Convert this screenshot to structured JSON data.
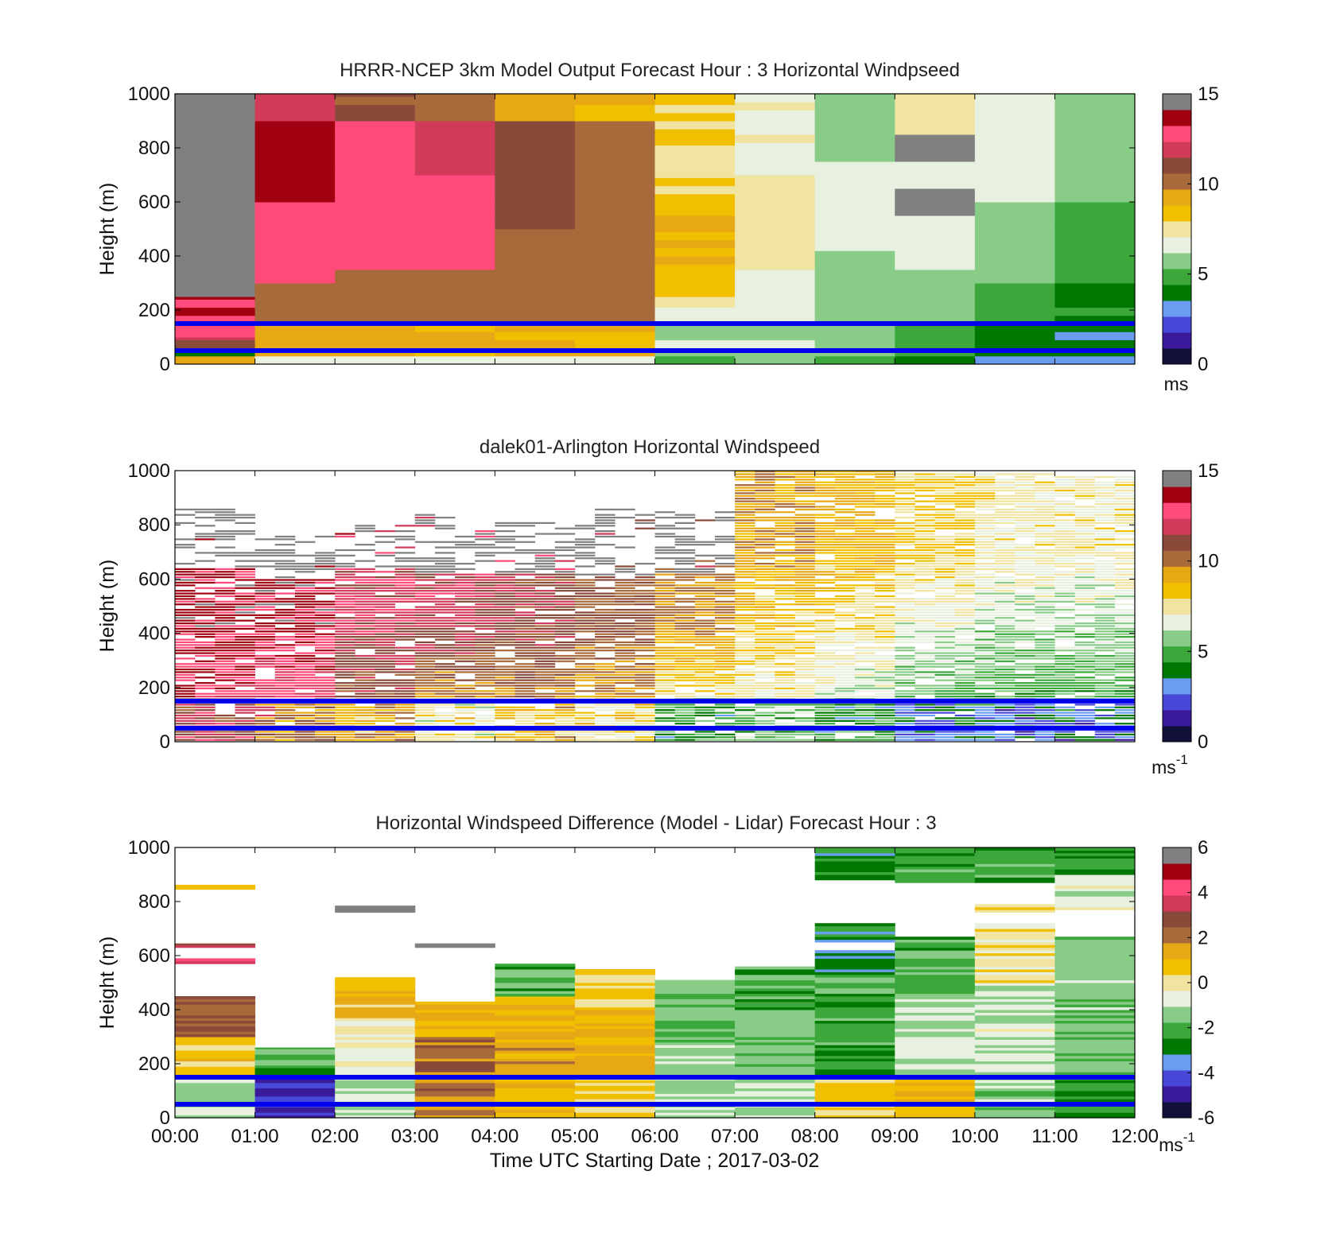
{
  "colors": {
    "windspeed_colormap": [
      "#101038",
      "#3a1a9a",
      "#4848d8",
      "#6a9cf0",
      "#007800",
      "#3ca83c",
      "#88cc88",
      "#e8f0e0",
      "#f0e4a0",
      "#f0c000",
      "#e6a814",
      "#a86a3a",
      "#8a4a3a",
      "#d23a5a",
      "#ff4a7a",
      "#a00010",
      "#808080"
    ],
    "difference_colormap": [
      "#101038",
      "#3a1a9a",
      "#4848d8",
      "#6a9cf0",
      "#007800",
      "#3ca83c",
      "#88cc88",
      "#e8f0e0",
      "#f0e4a0",
      "#f0c000",
      "#e6a814",
      "#a86a3a",
      "#8a4a3a",
      "#d23a5a",
      "#ff4a7a",
      "#a00010",
      "#808080"
    ],
    "overlay_line": "#0000ee",
    "missing": "#808080"
  },
  "chart_data": [
    {
      "type": "heatmap",
      "title": "HRRR-NCEP 3km Model Output   Forecast Hour : 3 Horizontal Windpseed",
      "xlabel": "",
      "ylabel": "Height (m)",
      "ylim": [
        0,
        1000
      ],
      "yticks": [
        0,
        200,
        400,
        600,
        800,
        1000
      ],
      "x_tick_labels": [
        "",
        "",
        "",
        "",
        "",
        "",
        "",
        "",
        "",
        "",
        "",
        "",
        ""
      ],
      "colorbar": {
        "min": 0,
        "max": 15,
        "ticks": [
          0,
          5,
          10,
          15
        ],
        "unit": "ms"
      },
      "overlay_heights": [
        150,
        50
      ],
      "columns": [
        {
          "x": "00:00-01:00",
          "profile": [
            [
              0,
              30,
              9.5
            ],
            [
              30,
              60,
              4
            ],
            [
              60,
              100,
              12
            ],
            [
              100,
              150,
              13.5
            ],
            [
              150,
              250,
              14
            ],
            [
              250,
              1000,
              15.5
            ]
          ]
        },
        {
          "x": "01:00-02:00",
          "profile": [
            [
              0,
              30,
              7.2
            ],
            [
              30,
              150,
              9.8
            ],
            [
              150,
              300,
              11
            ],
            [
              300,
              600,
              13.5
            ],
            [
              600,
              900,
              14.8
            ],
            [
              900,
              1000,
              13
            ]
          ]
        },
        {
          "x": "02:00-03:00",
          "profile": [
            [
              0,
              30,
              7.2
            ],
            [
              30,
              150,
              9.5
            ],
            [
              150,
              350,
              11
            ],
            [
              350,
              900,
              13.5
            ],
            [
              900,
              1000,
              11.5
            ]
          ]
        },
        {
          "x": "03:00-04:00",
          "profile": [
            [
              0,
              30,
              7.2
            ],
            [
              30,
              150,
              9.5
            ],
            [
              150,
              350,
              11
            ],
            [
              350,
              700,
              13.5
            ],
            [
              700,
              900,
              12.5
            ],
            [
              900,
              1000,
              11
            ]
          ]
        },
        {
          "x": "04:00-05:00",
          "profile": [
            [
              0,
              30,
              7.2
            ],
            [
              30,
              150,
              9.5
            ],
            [
              150,
              500,
              11
            ],
            [
              500,
              900,
              11.8
            ],
            [
              900,
              1000,
              10
            ]
          ]
        },
        {
          "x": "05:00-06:00",
          "profile": [
            [
              0,
              30,
              7.2
            ],
            [
              30,
              150,
              9.5
            ],
            [
              150,
              600,
              11
            ],
            [
              600,
              900,
              10.8
            ],
            [
              900,
              1000,
              9.3
            ]
          ]
        },
        {
          "x": "06:00-07:00",
          "profile": [
            [
              0,
              30,
              5.5
            ],
            [
              30,
              150,
              6.5
            ],
            [
              150,
              250,
              7.5
            ],
            [
              250,
              600,
              9.3
            ],
            [
              600,
              1000,
              8.4
            ]
          ]
        },
        {
          "x": "07:00-08:00",
          "profile": [
            [
              0,
              30,
              5.5
            ],
            [
              30,
              150,
              6.5
            ],
            [
              150,
              350,
              7
            ],
            [
              350,
              700,
              8
            ],
            [
              700,
              1000,
              7.4
            ]
          ]
        },
        {
          "x": "08:00-09:00",
          "profile": [
            [
              0,
              30,
              4.8
            ],
            [
              30,
              150,
              6
            ],
            [
              150,
              450,
              6.4
            ],
            [
              450,
              750,
              6.9
            ],
            [
              750,
              1000,
              6.1
            ]
          ]
        },
        {
          "x": "09:00-10:00",
          "profile": [
            [
              0,
              30,
              4.8
            ],
            [
              30,
              150,
              5.3
            ],
            [
              150,
              350,
              6.3
            ],
            [
              350,
              550,
              7
            ],
            [
              550,
              650,
              16
            ],
            [
              650,
              750,
              7.3
            ],
            [
              750,
              850,
              16
            ],
            [
              850,
              1000,
              8
            ]
          ]
        },
        {
          "x": "10:00-11:00",
          "profile": [
            [
              0,
              30,
              3.2
            ],
            [
              30,
              150,
              4.3
            ],
            [
              150,
              300,
              5
            ],
            [
              300,
              600,
              6
            ],
            [
              600,
              1000,
              7
            ]
          ]
        },
        {
          "x": "11:00-12:00",
          "profile": [
            [
              0,
              30,
              3.6
            ],
            [
              30,
              150,
              3.9
            ],
            [
              150,
              300,
              4.6
            ],
            [
              300,
              600,
              5.3
            ],
            [
              600,
              1000,
              6.3
            ]
          ]
        }
      ]
    },
    {
      "type": "heatmap",
      "title": "dalek01-Arlington  Horizontal Windspeed",
      "xlabel": "",
      "ylabel": "Height (m)",
      "ylim": [
        0,
        1000
      ],
      "yticks": [
        0,
        200,
        400,
        600,
        800,
        1000
      ],
      "x_tick_labels": [
        "",
        "",
        "",
        "",
        "",
        "",
        "",
        "",
        "",
        "",
        "",
        "",
        ""
      ],
      "colorbar": {
        "min": 0,
        "max": 15,
        "ticks": [
          0,
          5,
          10,
          15
        ],
        "unit": "ms",
        "unit_exponent": "-1"
      },
      "overlay_heights": [
        150,
        50
      ],
      "segments": [
        {
          "t": [
            0,
            1
          ],
          "top": 640,
          "low": 13.5,
          "high": 14.5,
          "gray_top": 870
        },
        {
          "t": [
            1,
            2
          ],
          "top": 600,
          "low": 12.0,
          "high": 14.5,
          "gray_top": 760
        },
        {
          "t": [
            2,
            3
          ],
          "top": 640,
          "low": 11.0,
          "high": 12.8,
          "gray_top": 800
        },
        {
          "t": [
            3,
            4
          ],
          "top": 620,
          "low": 9.0,
          "high": 12.5,
          "gray_top": 840
        },
        {
          "t": [
            4,
            5
          ],
          "top": 620,
          "low": 10.0,
          "high": 12.0,
          "gray_top": 820
        },
        {
          "t": [
            5,
            6
          ],
          "top": 610,
          "low": 9.3,
          "high": 11.3,
          "gray_top": 860
        },
        {
          "t": [
            6,
            7
          ],
          "top": 620,
          "low": 6.5,
          "high": 10.5,
          "gray_top": 850
        },
        {
          "t": [
            7,
            8
          ],
          "top": 1000,
          "low": 7.0,
          "high": 10.0,
          "gray_top": 0
        },
        {
          "t": [
            8,
            9
          ],
          "top": 1000,
          "low": 6.0,
          "high": 9.5,
          "gray_top": 0
        },
        {
          "t": [
            9,
            10
          ],
          "top": 990,
          "low": 4.8,
          "high": 8.6,
          "gray_top": 0
        },
        {
          "t": [
            10,
            11
          ],
          "top": 990,
          "low": 4.5,
          "high": 7.8,
          "gray_top": 0
        },
        {
          "t": [
            11,
            12
          ],
          "top": 980,
          "low": 4.5,
          "high": 7.8,
          "gray_top": 0
        }
      ]
    },
    {
      "type": "heatmap",
      "title": "Horizontal Windspeed Difference (Model - Lidar) Forecast Hour : 3",
      "xlabel": "Time UTC  Starting Date ; 2017-03-02",
      "ylabel": "Height (m)",
      "ylim": [
        0,
        1000
      ],
      "yticks": [
        0,
        200,
        400,
        600,
        800,
        1000
      ],
      "x_tick_labels": [
        "00:00",
        "01:00",
        "02:00",
        "03:00",
        "04:00",
        "05:00",
        "06:00",
        "07:00",
        "08:00",
        "09:00",
        "10:00",
        "11:00",
        "12:00"
      ],
      "colorbar": {
        "min": -6,
        "max": 6,
        "ticks": [
          6,
          4,
          2,
          0,
          -2,
          -4,
          -6
        ],
        "unit": "ms",
        "unit_exponent": "-1"
      },
      "overlay_heights": [
        150,
        50
      ],
      "columns": [
        {
          "x": "00:00-01:00",
          "top": 450,
          "profile": [
            [
              0,
              160,
              -0.8
            ],
            [
              160,
              300,
              1.0
            ],
            [
              300,
              450,
              2.8
            ],
            [
              570,
              590,
              4.5
            ],
            [
              630,
              645,
              3.8
            ],
            [
              845,
              862,
              1.2
            ]
          ]
        },
        {
          "x": "01:00-02:00",
          "top": 260,
          "profile": [
            [
              0,
              160,
              -4.5
            ],
            [
              160,
              185,
              -2.8
            ],
            [
              185,
              260,
              -1.6
            ]
          ]
        },
        {
          "x": "02:00-03:00",
          "top": 520,
          "profile": [
            [
              0,
              160,
              -0.8
            ],
            [
              160,
              360,
              0.1
            ],
            [
              360,
              520,
              1.3
            ],
            [
              760,
              785,
              6.2
            ]
          ]
        },
        {
          "x": "03:00-04:00",
          "top": 430,
          "profile": [
            [
              0,
              160,
              2.5
            ],
            [
              160,
              300,
              2.8
            ],
            [
              300,
              430,
              1.6
            ],
            [
              630,
              645,
              6.2
            ]
          ]
        },
        {
          "x": "04:00-05:00",
          "top": 570,
          "profile": [
            [
              0,
              160,
              1.3
            ],
            [
              160,
              350,
              2.0
            ],
            [
              350,
              450,
              1.2
            ],
            [
              450,
              570,
              -1.7
            ]
          ]
        },
        {
          "x": "05:00-06:00",
          "top": 550,
          "profile": [
            [
              0,
              160,
              0.7
            ],
            [
              160,
              400,
              1.5
            ],
            [
              400,
              550,
              0.8
            ]
          ]
        },
        {
          "x": "06:00-07:00",
          "top": 510,
          "profile": [
            [
              0,
              160,
              -0.6
            ],
            [
              160,
              300,
              -1.0
            ],
            [
              300,
              510,
              -1.5
            ]
          ]
        },
        {
          "x": "07:00-08:00",
          "top": 560,
          "profile": [
            [
              0,
              160,
              -0.7
            ],
            [
              160,
              400,
              -1.2
            ],
            [
              400,
              560,
              -1.8
            ]
          ]
        },
        {
          "x": "08:00-09:00",
          "top": 1000,
          "profile": [
            [
              0,
              160,
              0.8
            ],
            [
              160,
              540,
              -1.9
            ],
            [
              540,
              620,
              -2.8
            ],
            [
              650,
              720,
              -2.5
            ],
            [
              880,
              1000,
              -2.5
            ]
          ]
        },
        {
          "x": "09:00-10:00",
          "top": 1000,
          "profile": [
            [
              0,
              160,
              1.3
            ],
            [
              160,
              450,
              -0.7
            ],
            [
              450,
              670,
              -1.8
            ],
            [
              870,
              1000,
              -1.8
            ]
          ]
        },
        {
          "x": "10:00-11:00",
          "top": 1000,
          "profile": [
            [
              0,
              160,
              -1.2
            ],
            [
              160,
              500,
              -0.5
            ],
            [
              500,
              720,
              0.4
            ],
            [
              760,
              790,
              0.5
            ],
            [
              870,
              1000,
              -1.9
            ]
          ]
        },
        {
          "x": "11:00-12:00",
          "top": 1000,
          "profile": [
            [
              0,
              160,
              -2.4
            ],
            [
              160,
              670,
              -1.2
            ],
            [
              770,
              900,
              -0.3
            ],
            [
              900,
              1000,
              -2.3
            ]
          ]
        }
      ]
    }
  ]
}
